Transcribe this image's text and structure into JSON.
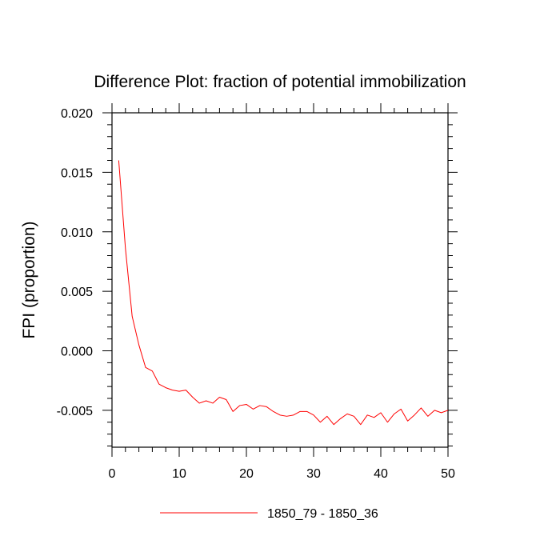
{
  "chart_data": {
    "type": "line",
    "title": "Difference Plot: fraction of potential immobilization",
    "ylabel": "FPI  (proportion)",
    "xlabel": "",
    "xlim": [
      0,
      50
    ],
    "ylim": [
      -0.0081,
      0.02
    ],
    "x_ticks": [
      0,
      10,
      20,
      30,
      40,
      50
    ],
    "x_tick_labels": [
      "0",
      "10",
      "20",
      "30",
      "40",
      "50"
    ],
    "y_ticks": [
      0.02,
      0.015,
      0.01,
      0.005,
      0.0,
      -0.005
    ],
    "y_tick_labels": [
      "0.020",
      "0.015",
      "0.010",
      "0.005",
      "0.000",
      "-0.005"
    ],
    "grid": false,
    "legend_position": "bottom-center",
    "series": [
      {
        "name": "1850_79 - 1850_36",
        "color": "#ff0000",
        "x": [
          1,
          2,
          3,
          4,
          5,
          6,
          7,
          8,
          9,
          10,
          11,
          12,
          13,
          14,
          15,
          16,
          17,
          18,
          19,
          20,
          21,
          22,
          23,
          24,
          25,
          26,
          27,
          28,
          29,
          30,
          31,
          32,
          33,
          34,
          35,
          36,
          37,
          38,
          39,
          40,
          41,
          42,
          43,
          44,
          45,
          46,
          47,
          48,
          49,
          50
        ],
        "values": [
          0.016,
          0.0086,
          0.0029,
          0.0005,
          -0.0014,
          -0.0017,
          -0.0028,
          -0.0031,
          -0.0033,
          -0.0034,
          -0.0033,
          -0.0039,
          -0.0044,
          -0.0042,
          -0.0044,
          -0.0039,
          -0.0041,
          -0.0051,
          -0.0046,
          -0.0045,
          -0.0049,
          -0.0046,
          -0.0047,
          -0.0051,
          -0.0054,
          -0.0055,
          -0.0054,
          -0.0051,
          -0.0051,
          -0.0054,
          -0.006,
          -0.0055,
          -0.0062,
          -0.0057,
          -0.0053,
          -0.0055,
          -0.0062,
          -0.0054,
          -0.0056,
          -0.0052,
          -0.006,
          -0.0053,
          -0.0049,
          -0.0059,
          -0.0054,
          -0.0048,
          -0.0055,
          -0.005,
          -0.0052,
          -0.005
        ]
      }
    ]
  }
}
